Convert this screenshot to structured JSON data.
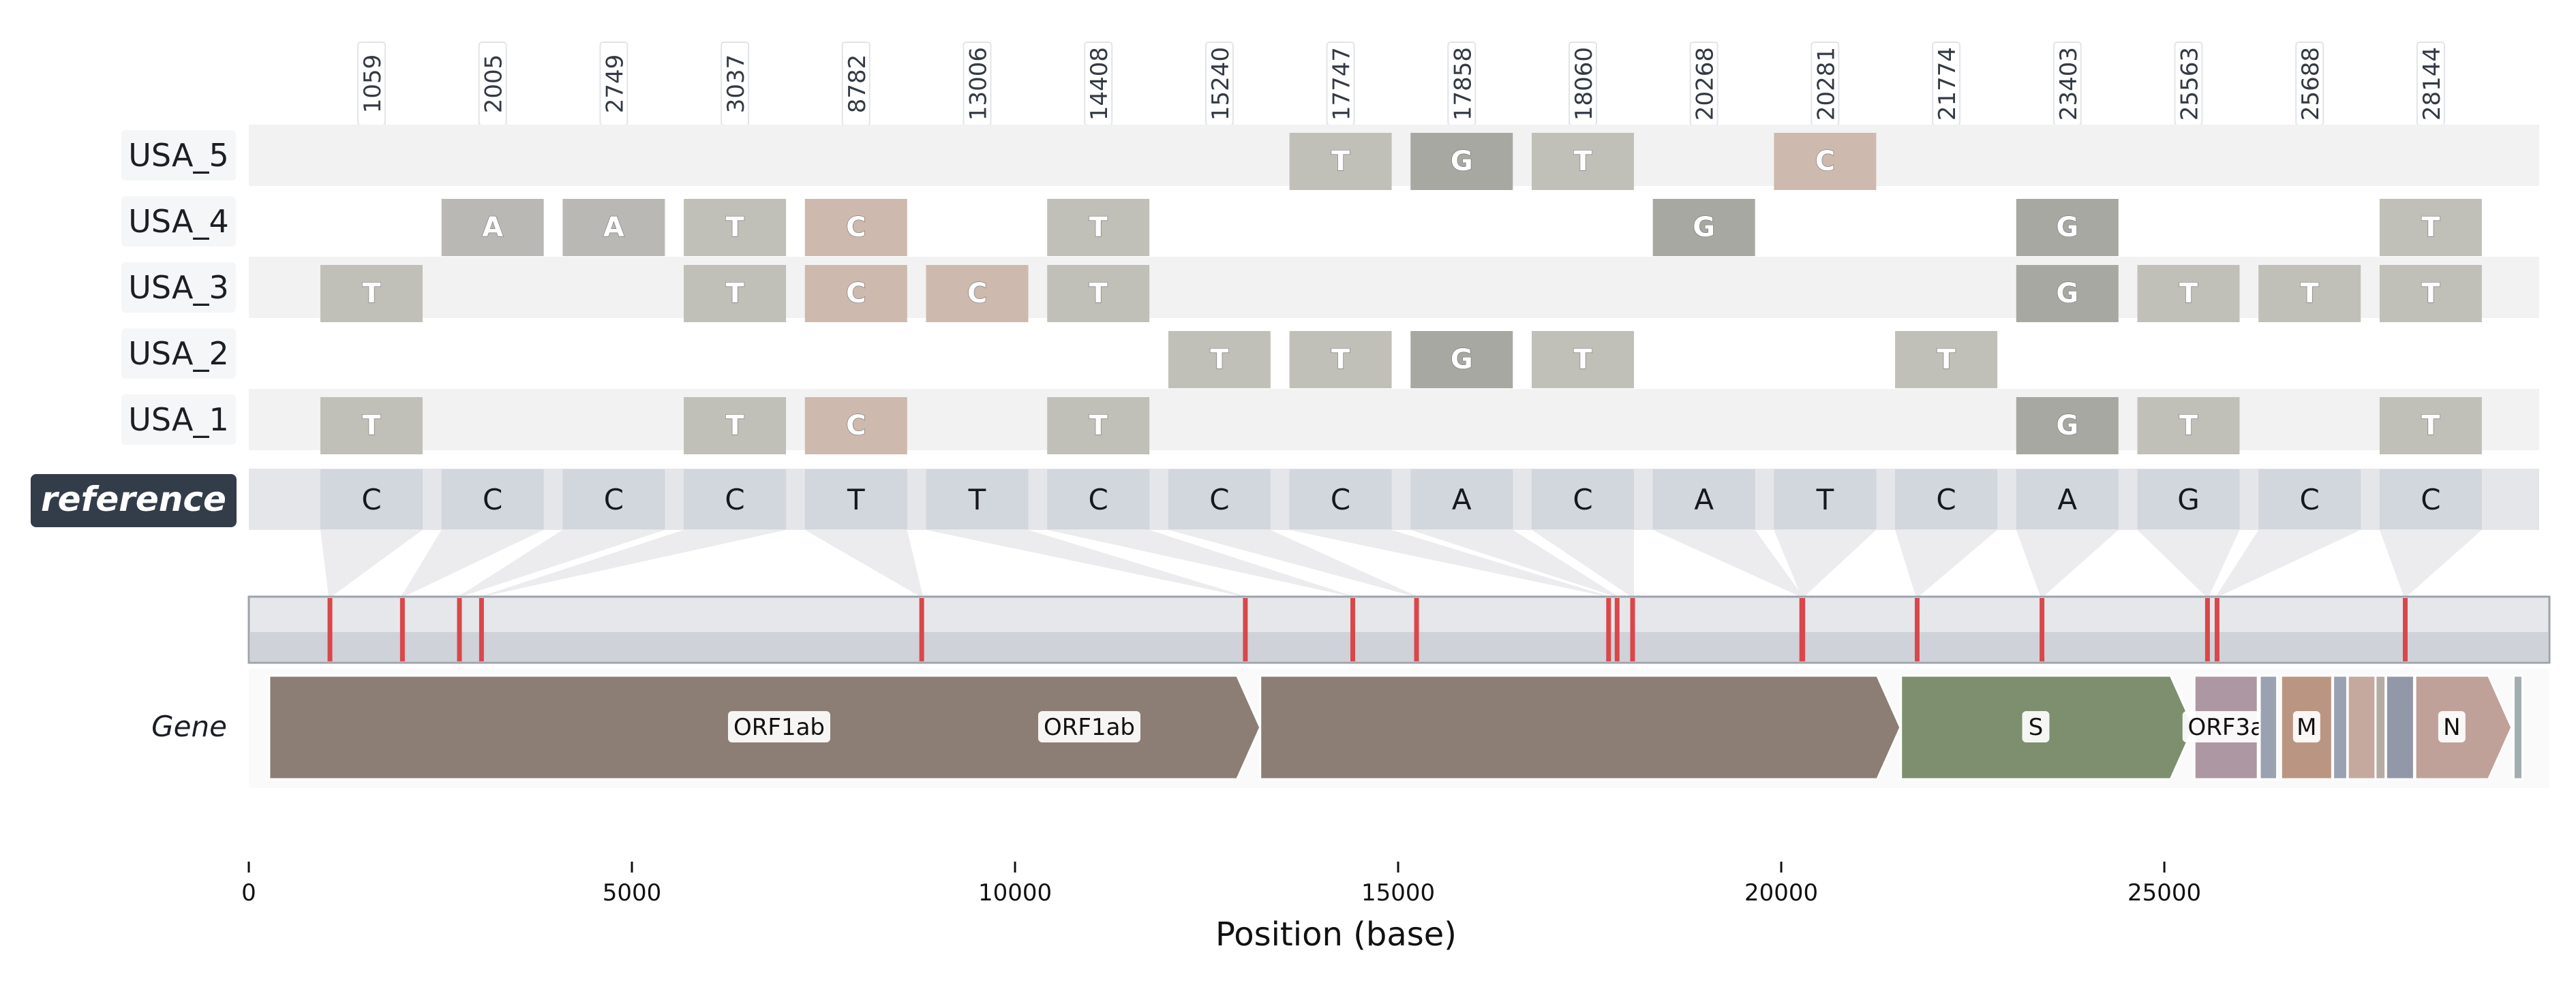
{
  "chart_data": {
    "type": "alignment",
    "positions": [
      1059,
      2005,
      2749,
      3037,
      8782,
      13006,
      14408,
      15240,
      17747,
      17858,
      18060,
      20268,
      20281,
      21774,
      23403,
      25563,
      25688,
      28144
    ],
    "reference": {
      "label": "reference",
      "bases": [
        "C",
        "C",
        "C",
        "C",
        "T",
        "T",
        "C",
        "C",
        "C",
        "A",
        "C",
        "A",
        "T",
        "C",
        "A",
        "G",
        "C",
        "C"
      ]
    },
    "samples": [
      {
        "name": "USA_5",
        "variants": [
          {
            "col": 8,
            "base": "T"
          },
          {
            "col": 9,
            "base": "G"
          },
          {
            "col": 10,
            "base": "T"
          },
          {
            "col": 12,
            "base": "C"
          }
        ]
      },
      {
        "name": "USA_4",
        "variants": [
          {
            "col": 1,
            "base": "A"
          },
          {
            "col": 2,
            "base": "A"
          },
          {
            "col": 3,
            "base": "T"
          },
          {
            "col": 4,
            "base": "C"
          },
          {
            "col": 6,
            "base": "T"
          },
          {
            "col": 11,
            "base": "G"
          },
          {
            "col": 14,
            "base": "G"
          },
          {
            "col": 17,
            "base": "T"
          }
        ]
      },
      {
        "name": "USA_3",
        "variants": [
          {
            "col": 0,
            "base": "T"
          },
          {
            "col": 3,
            "base": "T"
          },
          {
            "col": 4,
            "base": "C"
          },
          {
            "col": 5,
            "base": "C"
          },
          {
            "col": 6,
            "base": "T"
          },
          {
            "col": 14,
            "base": "G"
          },
          {
            "col": 15,
            "base": "T"
          },
          {
            "col": 16,
            "base": "T"
          },
          {
            "col": 17,
            "base": "T"
          }
        ]
      },
      {
        "name": "USA_2",
        "variants": [
          {
            "col": 7,
            "base": "T"
          },
          {
            "col": 8,
            "base": "T"
          },
          {
            "col": 9,
            "base": "G"
          },
          {
            "col": 10,
            "base": "T"
          },
          {
            "col": 13,
            "base": "T"
          }
        ]
      },
      {
        "name": "USA_1",
        "variants": [
          {
            "col": 0,
            "base": "T"
          },
          {
            "col": 3,
            "base": "T"
          },
          {
            "col": 4,
            "base": "C"
          },
          {
            "col": 6,
            "base": "T"
          },
          {
            "col": 14,
            "base": "G"
          },
          {
            "col": 15,
            "base": "T"
          },
          {
            "col": 17,
            "base": "T"
          }
        ]
      }
    ],
    "base_colors": {
      "T": "#c1c0b8",
      "G": "#a8a8a2",
      "A": "#b9b8b4",
      "C": "#ceb9af"
    },
    "genome_length": 29903,
    "genes": {
      "row_label": "Gene",
      "features": [
        {
          "start": 266,
          "end": 13200,
          "label": "ORF1ab",
          "color": "#8c7e74",
          "arrow": true
        },
        {
          "start": 13200,
          "end": 21555,
          "label": "ORF1ab",
          "color": "#8c7e74",
          "arrow": true
        },
        {
          "start": 21563,
          "end": 25384,
          "label": "S",
          "color": "#7d8f6e",
          "arrow": true
        },
        {
          "start": 25393,
          "end": 26220,
          "label": "ORF3a",
          "color": "#ad97a2",
          "arrow": false
        },
        {
          "start": 26245,
          "end": 26472,
          "label": "",
          "color": "#9aa1b1",
          "arrow": false
        },
        {
          "start": 26523,
          "end": 27191,
          "label": "M",
          "color": "#ba9682",
          "arrow": false
        },
        {
          "start": 27202,
          "end": 27387,
          "label": "",
          "color": "#9aa1b1",
          "arrow": false
        },
        {
          "start": 27394,
          "end": 27759,
          "label": "",
          "color": "#c5a99e",
          "arrow": false
        },
        {
          "start": 27756,
          "end": 27887,
          "label": "",
          "color": "#b4aca3",
          "arrow": false
        },
        {
          "start": 27894,
          "end": 28259,
          "label": "",
          "color": "#9298a8",
          "arrow": false
        },
        {
          "start": 28274,
          "end": 29533,
          "label": "N",
          "color": "#bfa19a",
          "arrow": true
        },
        {
          "start": 29558,
          "end": 29674,
          "label": "",
          "color": "#a3aeb0",
          "arrow": false
        }
      ]
    },
    "x_axis": {
      "label": "Position (base)",
      "range": [
        0,
        29903
      ],
      "ticks": [
        0,
        5000,
        10000,
        15000,
        20000,
        25000
      ]
    }
  }
}
